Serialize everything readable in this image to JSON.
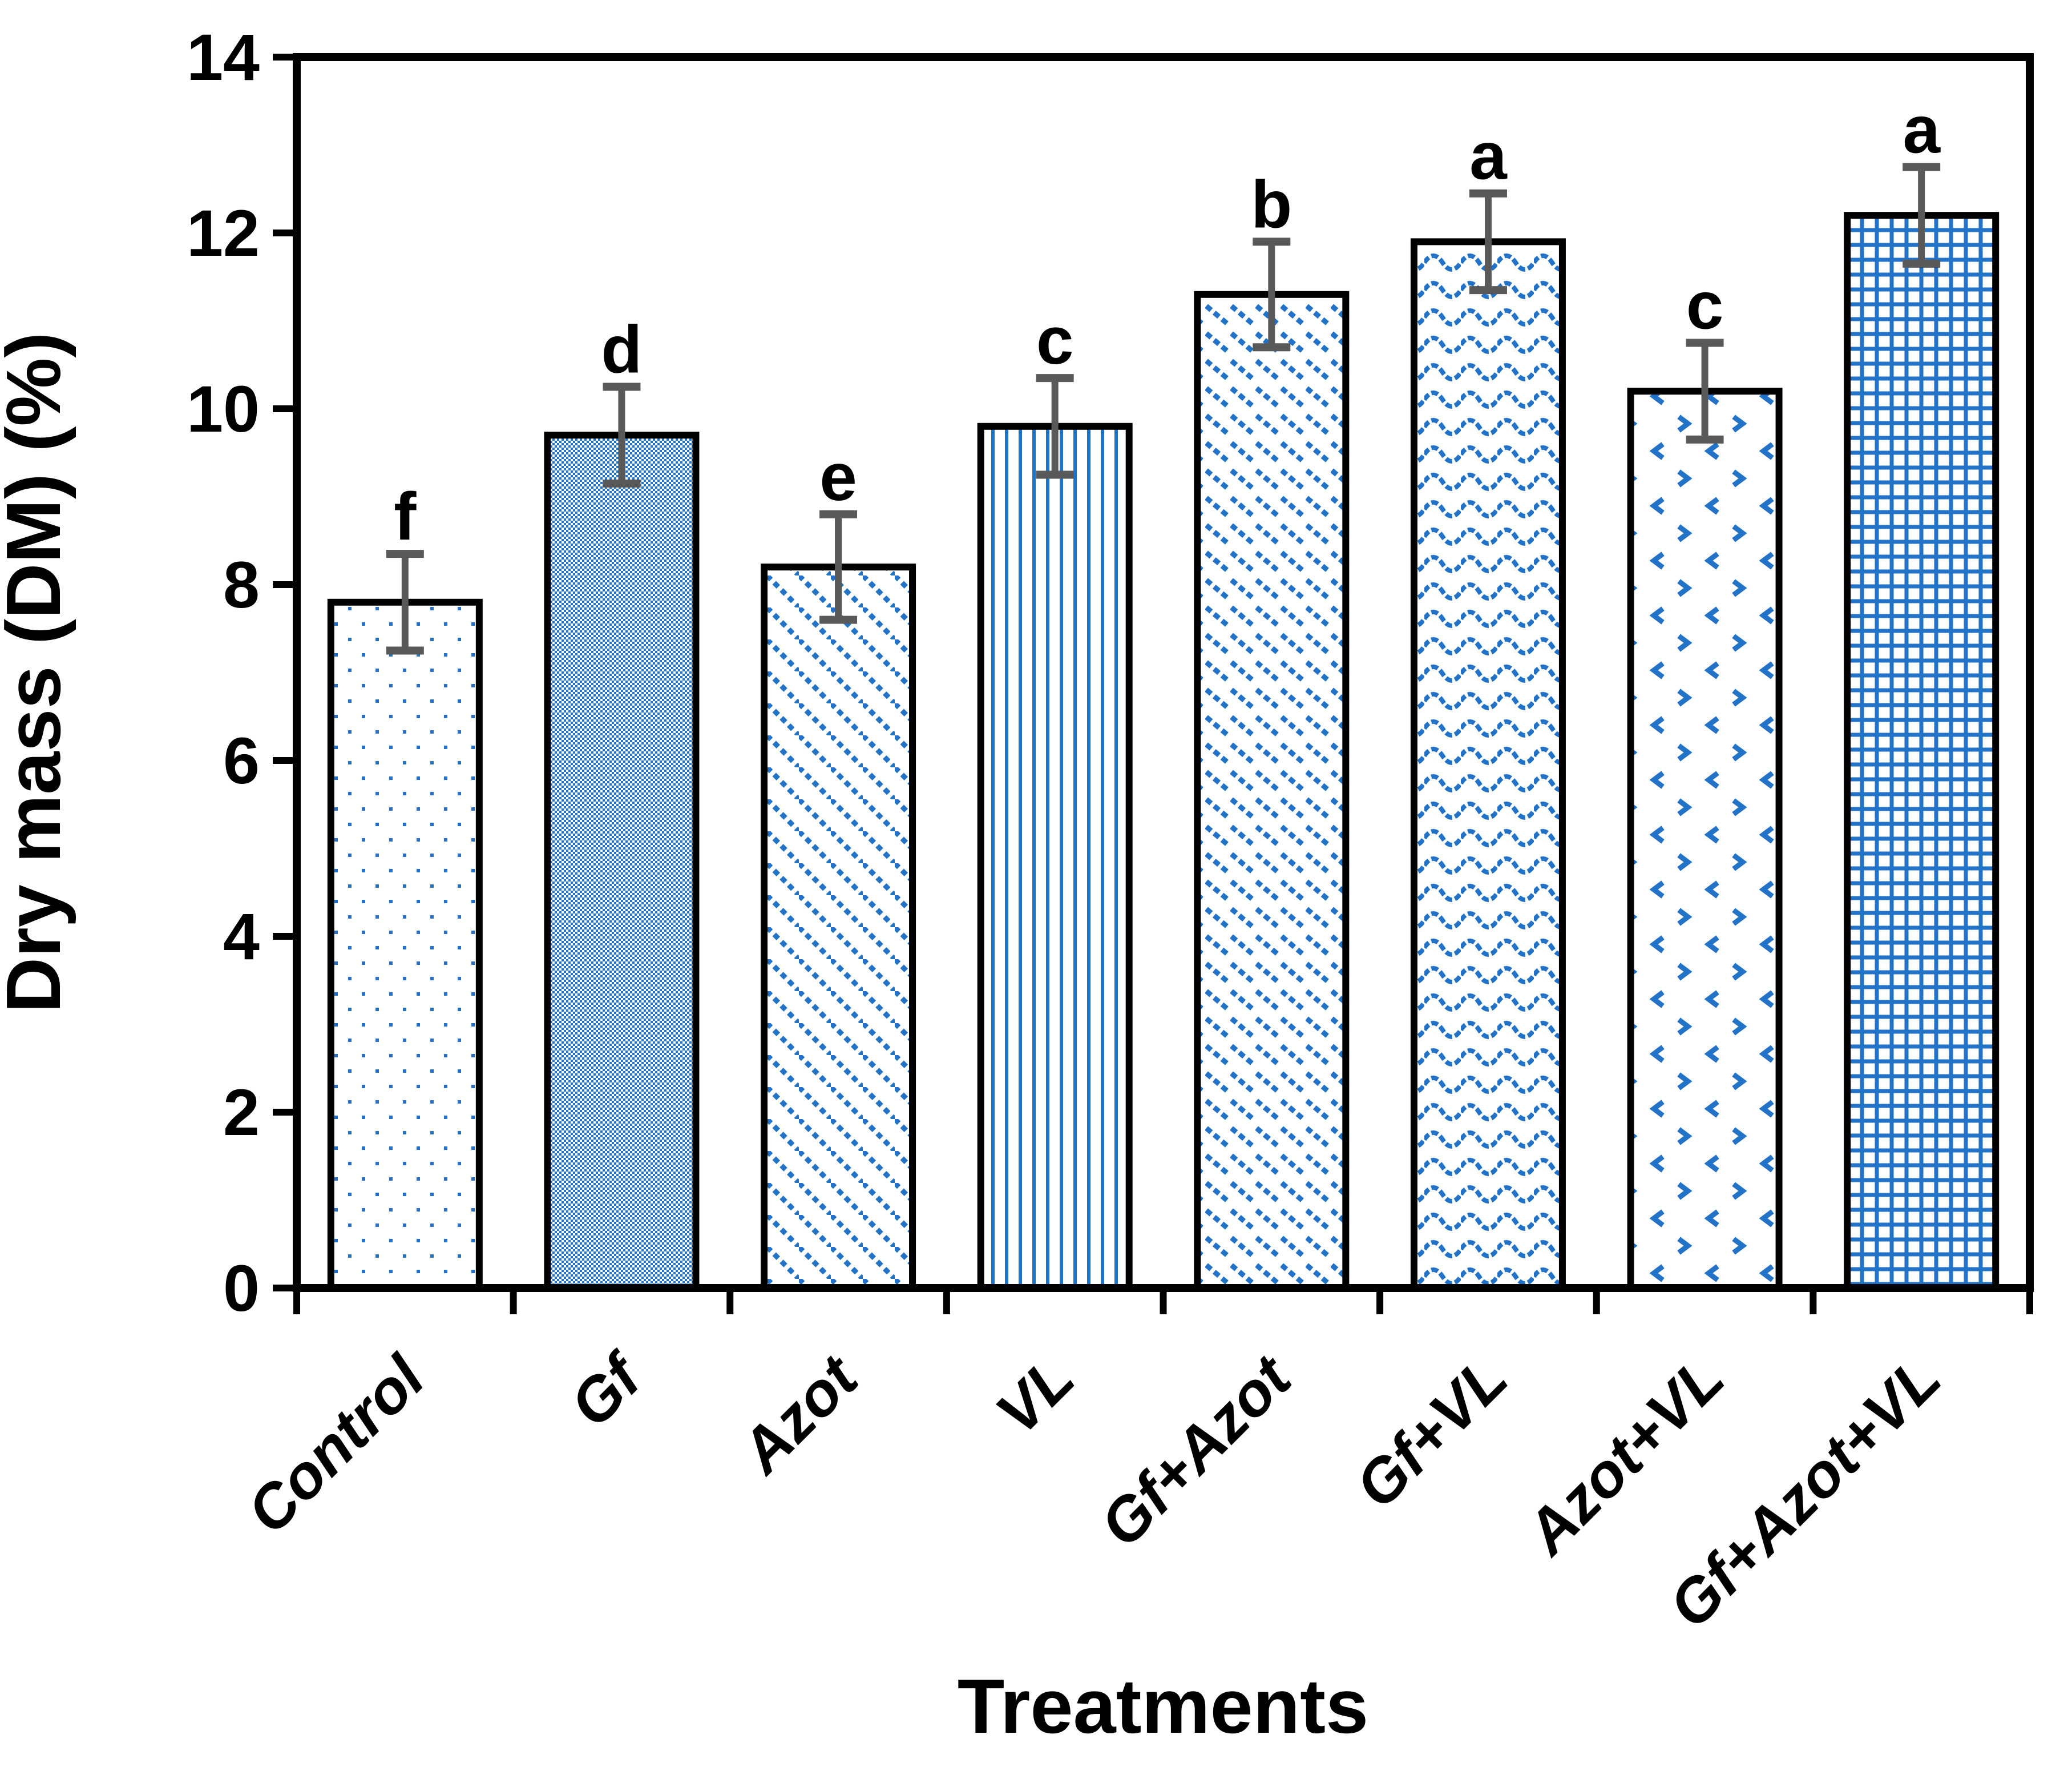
{
  "chart_data": {
    "type": "bar",
    "title": "",
    "xlabel": "Treatments",
    "ylabel": "Dry mass (DM) (%)",
    "categories": [
      "Control",
      "Gf",
      "Azot",
      "VL",
      "Gf+Azot",
      "Gf+VL",
      "Azot+VL",
      "Gf+Azot+VL"
    ],
    "values": [
      7.8,
      9.7,
      8.2,
      9.8,
      11.3,
      11.9,
      10.2,
      12.2
    ],
    "error_bars": [
      0.55,
      0.55,
      0.6,
      0.55,
      0.6,
      0.55,
      0.55,
      0.55
    ],
    "significance_letters": [
      "f",
      "d",
      "e",
      "c",
      "b",
      "a",
      "c",
      "a"
    ],
    "bar_patterns": [
      "sparse-dots",
      "fine-checker",
      "diagonal-dotted",
      "vertical-lines",
      "diagonal-dash-rows",
      "waves",
      "chevron-dots",
      "grid"
    ],
    "ylim": [
      0,
      14
    ],
    "yticks": [
      0,
      2,
      4,
      6,
      8,
      10,
      12,
      14
    ],
    "grid": "off",
    "legend": "none",
    "colors": {
      "pattern_blue": "#2272C8",
      "bar_outline": "#000000",
      "error_bar_gray": "#595959",
      "text": "#000000",
      "background": "#FFFFFF"
    }
  }
}
